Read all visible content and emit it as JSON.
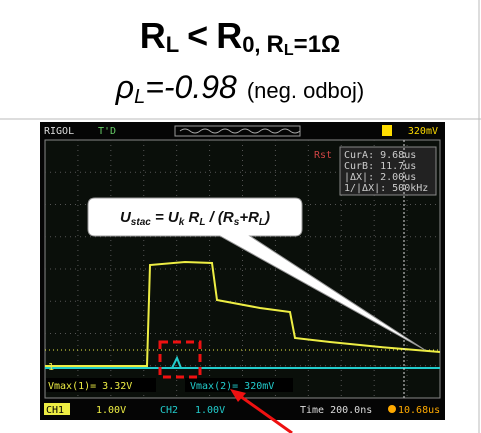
{
  "title": {
    "r1": "R",
    "s1": "L",
    "lt": "<",
    "r2": "R",
    "s2": "0,",
    "r3": "R",
    "s3": "L",
    "eq": "=1Ω"
  },
  "subtitle": {
    "rho": "ρ",
    "sub": "L",
    "value": "=-0.98",
    "note": "(neg. odboj)"
  },
  "scope": {
    "brand": "RIGOL",
    "trig_status": "T'D",
    "trig_level": "320mV",
    "rst": "Rst",
    "cursors": [
      "CurA: 9.68us",
      "CurB: 11.7us",
      "|ΔX|: 2.00us",
      "1/|ΔX|: 500kHz"
    ],
    "formula": {
      "u1": "U",
      "u1sub": "stac",
      "mid": " = U",
      "ksub": "k",
      "r": " R",
      "lsub": "L",
      "div": " / (R",
      "ssub": "s",
      "plus": "+R",
      "lsub2": "L",
      "close": ")"
    },
    "meas1": "Vmax(1)= 3.32V",
    "meas2": "Vmax(2)= 320mV",
    "ch1": "CH1",
    "ch1_scale": "1.00V",
    "ch2": "CH2",
    "ch2_scale": "1.00V",
    "time": "Time 200.0ns",
    "trig_pos": "10.68us"
  }
}
